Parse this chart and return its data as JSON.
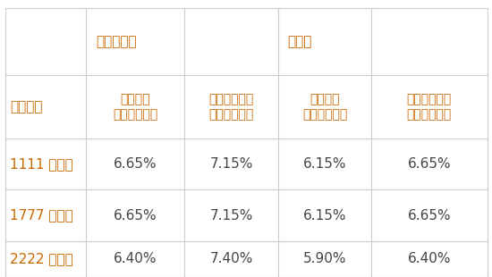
{
  "bg_color": "#ffffff",
  "grid_color": "#cccccc",
  "header1_color": "#cc6600",
  "header2_color": "#cc6600",
  "row_label_color": "#cc6600",
  "data_color": "#444444",
  "header1_texts": [
    "",
    "खुदरा",
    "",
    "थोक",
    ""
  ],
  "header2_col0": "अवधि",
  "header2_col1_line1": "जनरल",
  "header2_col1_line2": "पब्लिक",
  "header2_col2_line1": "विरष्ठ",
  "header2_col2_line2": "नागरिक",
  "header2_col3_line1": "जनरल",
  "header2_col3_line2": "पब्लिक",
  "header2_col4_line1": "विरष्ठ",
  "header2_col4_line2": "नागरिक",
  "rows": [
    [
      "1111 दिन",
      "6.65%",
      "7.15%",
      "6.15%",
      "6.65%"
    ],
    [
      "1777 दिन",
      "6.65%",
      "7.15%",
      "6.15%",
      "6.65%"
    ],
    [
      "2222 दिन",
      "6.40%",
      "7.40%",
      "5.90%",
      "6.40%"
    ]
  ],
  "note_khudara": "खुदरा",
  "note_thok": "थोक"
}
